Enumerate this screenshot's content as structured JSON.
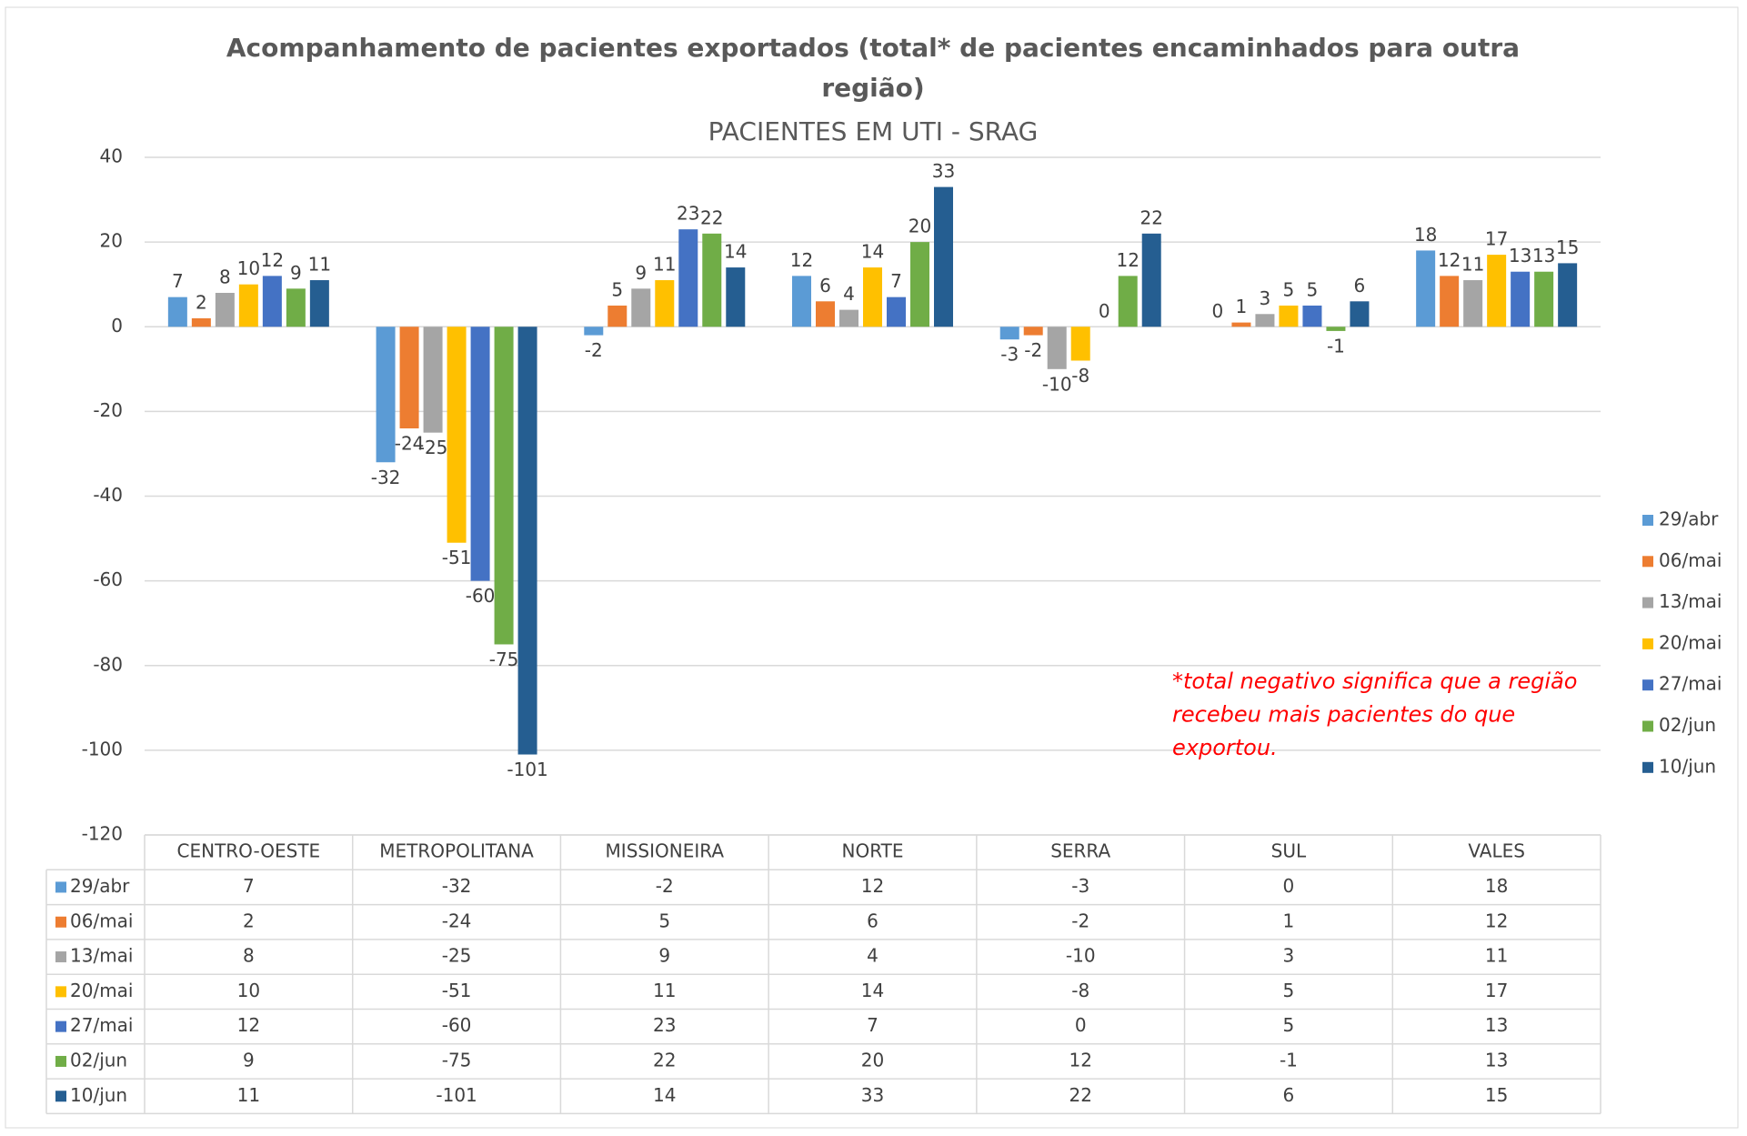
{
  "chart_data": {
    "type": "bar",
    "title": "Acompanhamento de pacientes exportados (total* de pacientes encaminhados para outra região)",
    "subtitle": "PACIENTES EM UTI - SRAG",
    "annotation": [
      "*total negativo significa que a região",
      " recebeu mais pacientes do que",
      "exportou."
    ],
    "categories": [
      "CENTRO-OESTE",
      "METROPOLITANA",
      "MISSIONEIRA",
      "NORTE",
      "SERRA",
      "SUL",
      "VALES"
    ],
    "series": [
      {
        "name": "29/abr",
        "color": "#5b9bd5",
        "values": [
          7,
          -32,
          -2,
          12,
          -3,
          0,
          18
        ]
      },
      {
        "name": "06/mai",
        "color": "#ed7d31",
        "values": [
          2,
          -24,
          5,
          6,
          -2,
          1,
          12
        ]
      },
      {
        "name": "13/mai",
        "color": "#a5a5a5",
        "values": [
          8,
          -25,
          9,
          4,
          -10,
          3,
          11
        ]
      },
      {
        "name": "20/mai",
        "color": "#ffc000",
        "values": [
          10,
          -51,
          11,
          14,
          -8,
          5,
          17
        ]
      },
      {
        "name": "27/mai",
        "color": "#4472c4",
        "values": [
          12,
          -60,
          23,
          7,
          0,
          5,
          13
        ]
      },
      {
        "name": "02/jun",
        "color": "#70ad47",
        "values": [
          9,
          -75,
          22,
          20,
          12,
          -1,
          13
        ]
      },
      {
        "name": "10/jun",
        "color": "#255e91",
        "values": [
          11,
          -101,
          14,
          33,
          22,
          6,
          15
        ]
      }
    ],
    "ylim": [
      -120,
      40
    ],
    "yticks": [
      -120,
      -100,
      -80,
      -60,
      -40,
      -20,
      0,
      20,
      40
    ],
    "grid": true,
    "legend": "right"
  }
}
